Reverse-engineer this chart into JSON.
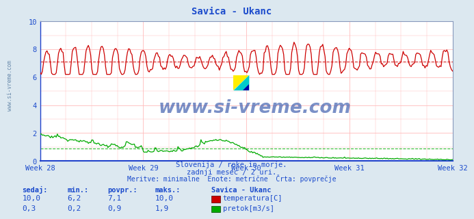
{
  "title": "Savica - Ukanc",
  "title_color": "#1a4acc",
  "bg_color": "#dce8f0",
  "plot_bg_color": "#ffffff",
  "grid_color": "#ffbbbb",
  "axis_color": "#1a4acc",
  "x_labels": [
    "Week 28",
    "Week 29",
    "Week 30",
    "Week 31",
    "Week 32"
  ],
  "y_major_ticks": [
    0,
    2,
    4,
    6,
    8,
    10
  ],
  "ylim": [
    0,
    10
  ],
  "temp_color": "#cc0000",
  "flow_color": "#00aa00",
  "avg_temp": 7.1,
  "avg_flow": 0.9,
  "n_points": 360,
  "watermark": "www.si-vreme.com",
  "watermark_color": "#3355aa",
  "subtitle1": "Slovenija / reke in morje.",
  "subtitle2": "zadnji mesec / 2 uri.",
  "subtitle3": "Meritve: minimalne  Enote: metrične  Črta: povprečje",
  "table_headers": [
    "sedaj:",
    "min.:",
    "povpr.:",
    "maks.:"
  ],
  "table_row1": [
    "10,0",
    "6,2",
    "7,1",
    "10,0"
  ],
  "table_row2": [
    "0,3",
    "0,2",
    "0,9",
    "1,9"
  ],
  "legend_label1": "temperatura[C]",
  "legend_label2": "pretok[m3/s]",
  "station_label": "Savica - Ukanc",
  "text_color": "#1a4acc",
  "side_text_color": "#6688aa"
}
